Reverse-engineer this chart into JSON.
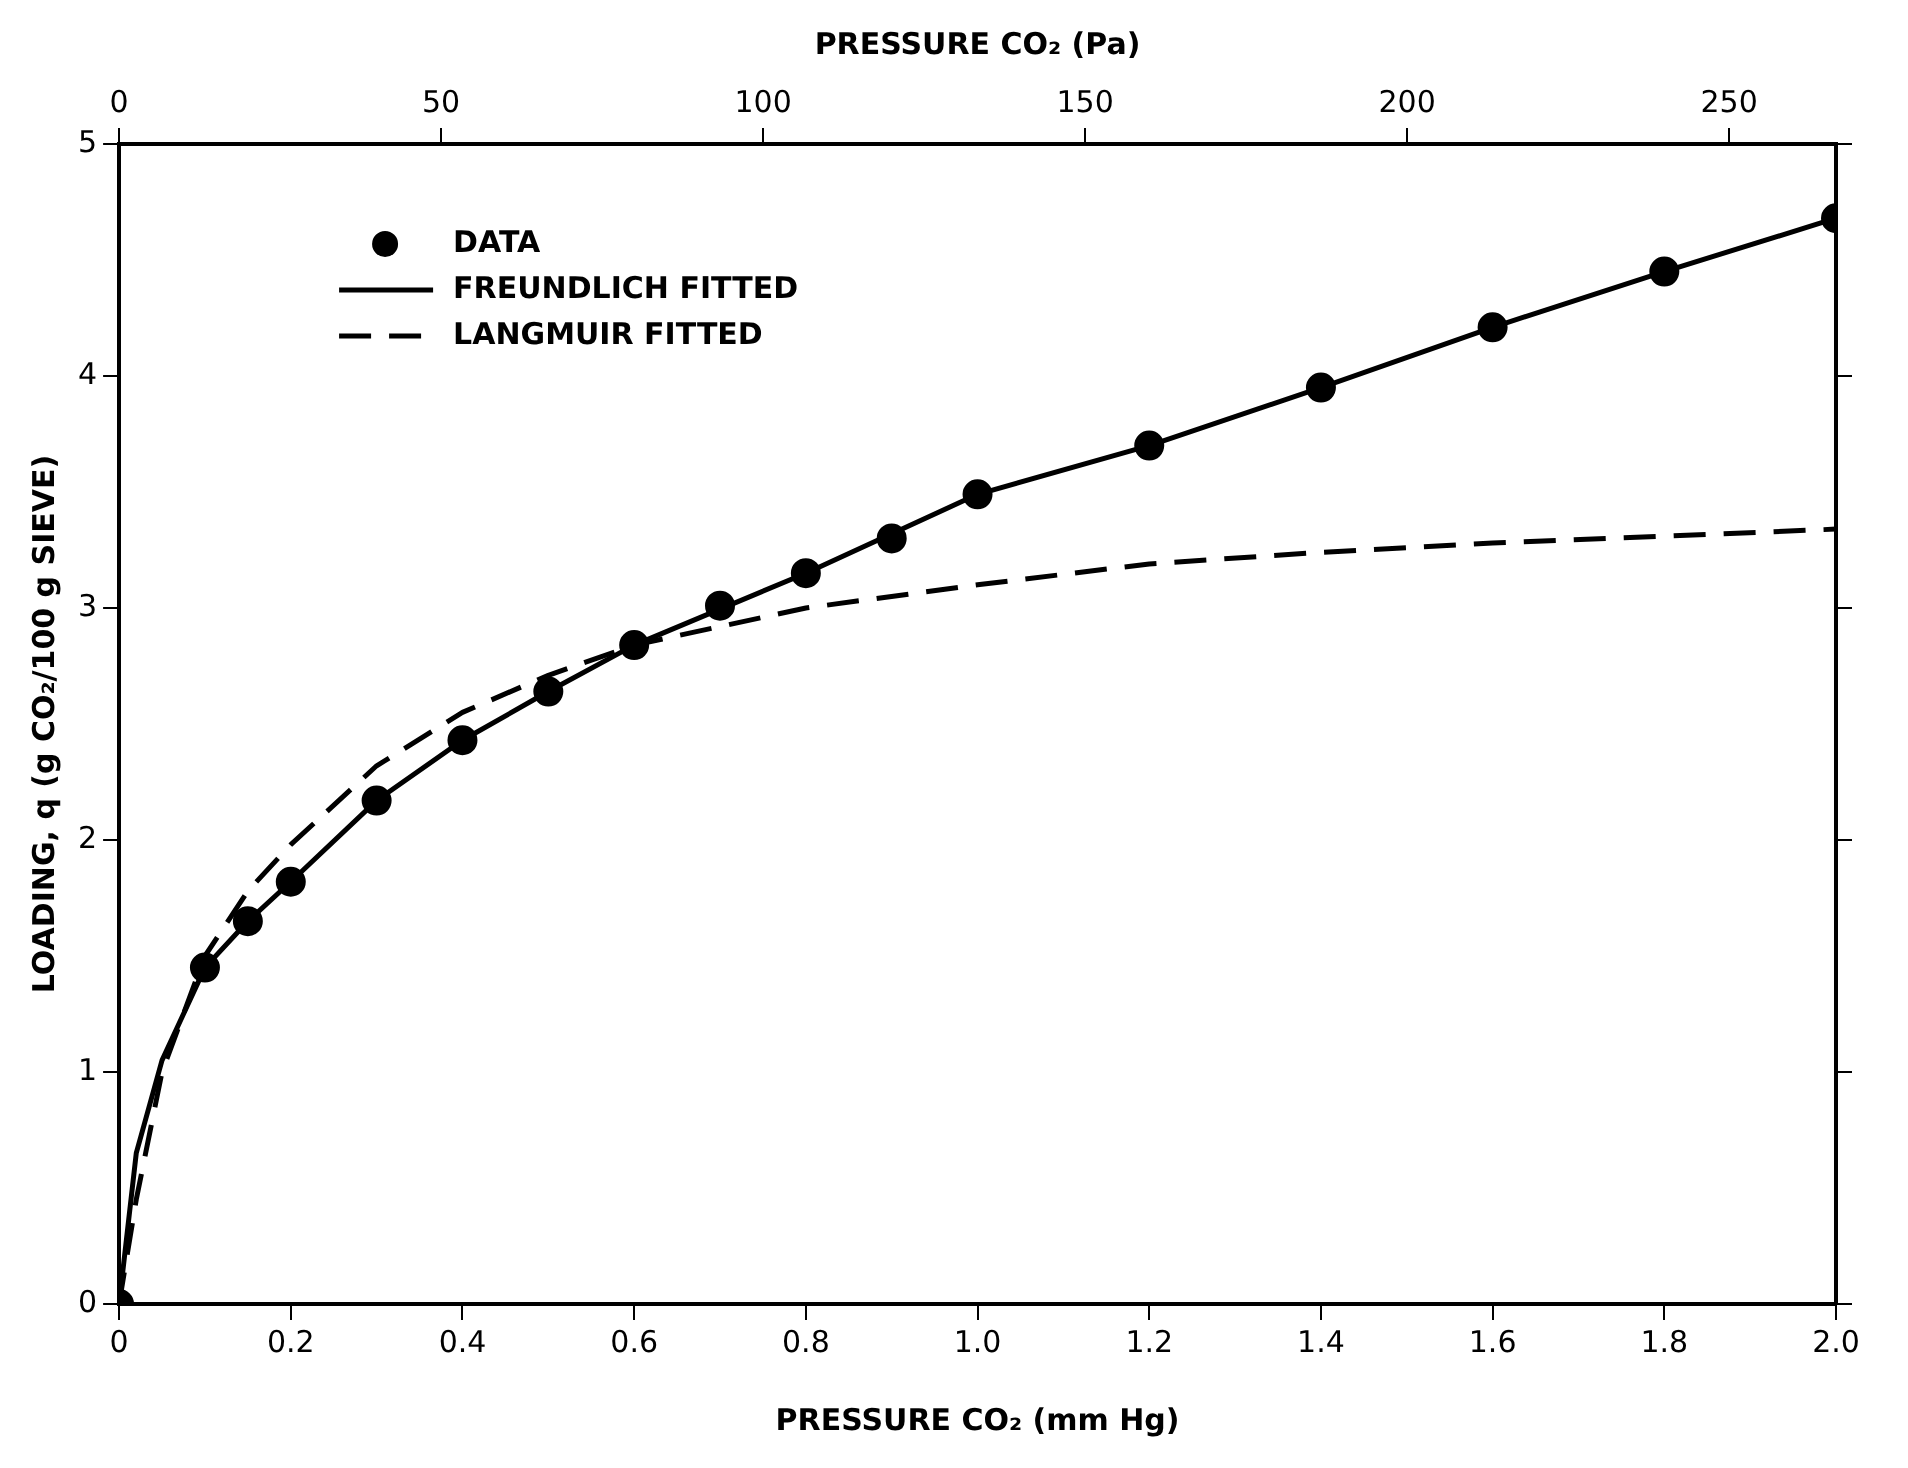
{
  "chart_data": {
    "type": "scatter",
    "xlabel": "PRESSURE CO₂ (mm Hg)",
    "x2label": "PRESSURE CO₂ (Pa)",
    "ylabel": "LOADING, q (g CO₂/100 g SIEVE)",
    "xlim": [
      0,
      2.0
    ],
    "xticks": [
      0,
      0.2,
      0.4,
      0.6,
      0.8,
      {
        "value": 1.0,
        "label": "1.0"
      },
      1.2,
      1.4,
      1.6,
      1.8,
      {
        "value": 2.0,
        "label": "2.0"
      }
    ],
    "x2lim": [
      0,
      266.6
    ],
    "x2ticks": [
      0,
      50,
      100,
      150,
      200,
      250
    ],
    "ylim": [
      0,
      5
    ],
    "yticks": [
      0,
      1,
      2,
      3,
      4,
      5
    ],
    "grid": false,
    "legend": "top left",
    "series": [
      {
        "name": "DATA",
        "type": "scatter",
        "marker": "circle",
        "color": "#000000",
        "x": [
          0,
          0.1,
          0.15,
          0.2,
          0.3,
          0.4,
          0.5,
          0.6,
          0.7,
          0.8,
          0.9,
          1.0,
          1.2,
          1.4,
          1.6,
          1.8,
          2.0
        ],
        "values": [
          0,
          1.45,
          1.65,
          1.82,
          2.17,
          2.43,
          2.64,
          2.84,
          3.01,
          3.15,
          3.3,
          3.49,
          3.7,
          3.95,
          4.21,
          4.45,
          4.68
        ]
      },
      {
        "name": "FREUNDLICH FITTED",
        "type": "line",
        "line_style": "solid",
        "color": "#000000",
        "x": [
          0,
          0.02,
          0.05,
          0.1,
          0.15,
          0.2,
          0.3,
          0.4,
          0.5,
          0.6,
          0.8,
          1.0,
          1.2,
          1.4,
          1.6,
          1.8,
          2.0
        ],
        "values": [
          0,
          0.65,
          1.05,
          1.45,
          1.65,
          1.82,
          2.17,
          2.43,
          2.64,
          2.84,
          3.15,
          3.49,
          3.7,
          3.95,
          4.21,
          4.45,
          4.68
        ]
      },
      {
        "name": "LANGMUIR FITTED",
        "type": "line",
        "line_style": "dashed",
        "color": "#000000",
        "x": [
          0,
          0.02,
          0.05,
          0.1,
          0.15,
          0.2,
          0.3,
          0.4,
          0.5,
          0.6,
          0.8,
          1.0,
          1.2,
          1.4,
          1.6,
          1.8,
          2.0
        ],
        "values": [
          0,
          0.45,
          1.0,
          1.5,
          1.78,
          1.98,
          2.32,
          2.55,
          2.71,
          2.84,
          3.0,
          3.1,
          3.19,
          3.24,
          3.28,
          3.31,
          3.34
        ]
      }
    ]
  }
}
